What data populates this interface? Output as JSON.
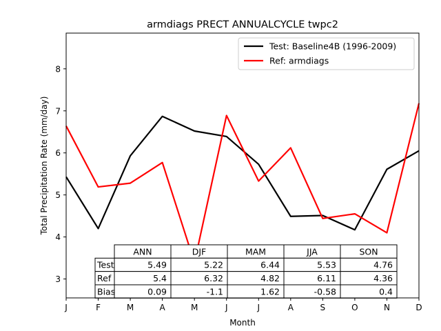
{
  "chart_data": {
    "type": "line",
    "title": "armdiags PRECT ANNUALCYCLE twpc2",
    "xlabel": "Month",
    "ylabel": "Total Precipitation Rate (mm/day)",
    "categories": [
      "J",
      "F",
      "M",
      "A",
      "M",
      "J",
      "J",
      "A",
      "S",
      "O",
      "N",
      "D"
    ],
    "ylim": [
      2.55,
      8.85
    ],
    "yticks": [
      3,
      4,
      5,
      6,
      7,
      8
    ],
    "grid": false,
    "legend_position": "upper right",
    "series": [
      {
        "name": "Test: Baseline4B (1996-2009)",
        "color": "#000000",
        "values": [
          5.43,
          4.2,
          5.93,
          6.87,
          6.52,
          6.39,
          5.73,
          4.49,
          4.51,
          4.17,
          5.61,
          6.05
        ]
      },
      {
        "name": "Ref: armdiags",
        "color": "#ff0000",
        "values": [
          6.64,
          5.19,
          5.28,
          5.77,
          3.39,
          6.89,
          5.33,
          6.12,
          4.44,
          4.55,
          4.1,
          7.18
        ]
      }
    ],
    "table": {
      "columns": [
        "ANN",
        "DJF",
        "MAM",
        "JJA",
        "SON"
      ],
      "rows": [
        {
          "label": "Test",
          "values": [
            "5.49",
            "5.22",
            "6.44",
            "5.53",
            "4.76"
          ]
        },
        {
          "label": "Ref",
          "values": [
            "5.4",
            "6.32",
            "4.82",
            "6.11",
            "4.36"
          ]
        },
        {
          "label": "Bias",
          "values": [
            "0.09",
            "-1.1",
            "1.62",
            "-0.58",
            "0.4"
          ]
        }
      ]
    }
  }
}
